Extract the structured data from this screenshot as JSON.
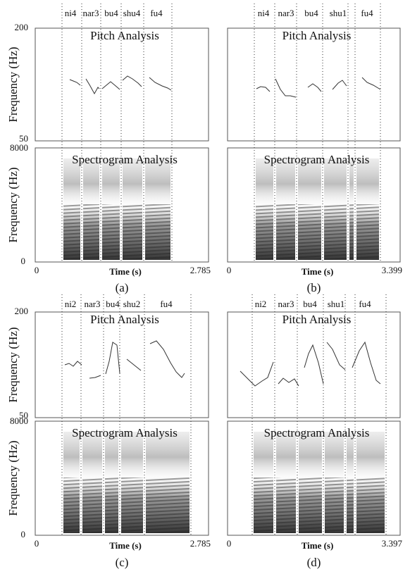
{
  "panels": [
    {
      "caption": "(a)",
      "syllables": [
        "ni4",
        "nar3",
        "bu4",
        "shu4",
        "fu4"
      ],
      "pitch": {
        "title": "Pitch Analysis",
        "y_label": "Frequency (Hz)",
        "y_top": 200,
        "y_bottom": 50
      },
      "spectrogram": {
        "title": "Spectrogram Analysis",
        "y_label": "Frequency (Hz)",
        "y_top": 8000,
        "y_bottom": 0
      },
      "x_axis": {
        "label": "Time (s)",
        "start": 0,
        "end": 2.785
      }
    },
    {
      "caption": "(b)",
      "syllables": [
        "ni4",
        "nar3",
        "bu4",
        "shu1",
        "fu4"
      ],
      "pitch": {
        "title": "Pitch Analysis"
      },
      "spectrogram": {
        "title": "Spectrogram Analysis"
      },
      "x_axis": {
        "label": "Time (s)",
        "start": 0,
        "end": 3.399
      }
    },
    {
      "caption": "(c)",
      "syllables": [
        "ni2",
        "nar3",
        "bu4",
        "shu2",
        "fu4"
      ],
      "pitch": {
        "title": "Pitch Analysis",
        "y_label": "Frequency (Hz)",
        "y_top": 200,
        "y_bottom": 50
      },
      "spectrogram": {
        "title": "Spectrogram Analysis",
        "y_label": "Frequency (Hz)",
        "y_top": 8000,
        "y_bottom": 0
      },
      "x_axis": {
        "label": "Time (s)",
        "start": 0,
        "end": 2.785
      }
    },
    {
      "caption": "(d)",
      "syllables": [
        "ni2",
        "nar3",
        "bu4",
        "shu1",
        "fu4"
      ],
      "pitch": {
        "title": "Pitch Analysis"
      },
      "spectrogram": {
        "title": "Spectrogram Analysis"
      },
      "x_axis": {
        "label": "Time (s)",
        "start": 0,
        "end": 3.397
      }
    }
  ]
}
